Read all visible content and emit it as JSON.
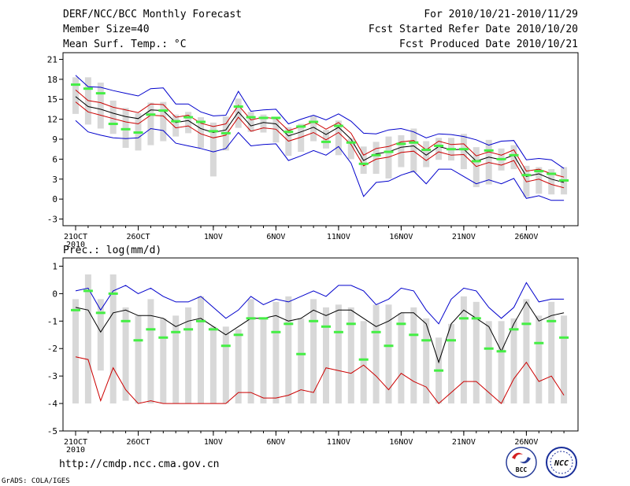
{
  "header": {
    "title": "DERF/NCC/BCC Monthly Forecast",
    "member_size": "Member Size=40",
    "variable": "Mean Surf. Temp.: °C",
    "period": "For 2010/10/21-2010/11/29",
    "start_date": "Fcst Started Refer Date 2010/10/20",
    "produced_date": "Fcst Produced Date 2010/10/21"
  },
  "footer": {
    "url": "http://cmdp.ncc.cma.gov.cn",
    "grads_credit": "GrADS: COLA/IGES",
    "logo_bcc": "BCC",
    "logo_ncc": "NCC"
  },
  "colors": {
    "envelope": "#0000cc",
    "ensemble_mean": "#000000",
    "spread_band": "#cc0000",
    "observed_bar": "#d8d8d8",
    "marker": "#44ee44"
  },
  "chart_data": [
    {
      "type": "line",
      "title": "Mean Surf. Temp.: °C",
      "xlabel": "",
      "ylabel": "",
      "x_ticks": [
        "21OCT",
        "26OCT",
        "1NOV",
        "6NOV",
        "11NOV",
        "16NOV",
        "21NOV",
        "26NOV"
      ],
      "x_tick_days": [
        1,
        6,
        12,
        17,
        22,
        27,
        32,
        37
      ],
      "x_sub_label": "2010",
      "ylim": [
        -4,
        22
      ],
      "y_ticks": [
        -3,
        0,
        3,
        6,
        9,
        12,
        15,
        18,
        21
      ],
      "days": [
        1,
        2,
        3,
        4,
        5,
        6,
        7,
        8,
        9,
        10,
        11,
        12,
        13,
        14,
        15,
        16,
        17,
        18,
        19,
        20,
        21,
        22,
        23,
        24,
        25,
        26,
        27,
        28,
        29,
        30,
        31,
        32,
        33,
        34,
        35,
        36,
        37,
        38,
        39,
        40
      ],
      "series": [
        {
          "name": "max",
          "values": [
            18.6,
            16.9,
            16.8,
            16.3,
            15.9,
            15.5,
            16.6,
            16.7,
            14.3,
            14.3,
            13.1,
            12.5,
            12.6,
            16.2,
            13.2,
            13.4,
            13.5,
            11.3,
            12.0,
            12.6,
            11.9,
            12.8,
            11.7,
            9.9,
            9.8,
            10.4,
            10.6,
            10.1,
            9.2,
            9.8,
            9.7,
            9.4,
            8.9,
            8.1,
            8.7,
            8.8,
            5.9,
            6.1,
            5.9,
            4.6
          ]
        },
        {
          "name": "upper",
          "values": [
            16.4,
            14.8,
            14.5,
            13.8,
            13.4,
            13.0,
            14.3,
            14.2,
            12.3,
            12.6,
            11.4,
            10.9,
            11.3,
            14.1,
            11.9,
            12.3,
            12.1,
            10.3,
            10.9,
            11.6,
            10.5,
            11.5,
            9.9,
            6.6,
            7.6,
            7.9,
            8.6,
            8.8,
            7.4,
            8.7,
            8.2,
            8.3,
            6.5,
            7.1,
            6.6,
            7.4,
            4.2,
            4.5,
            3.8,
            3.3
          ]
        },
        {
          "name": "mean",
          "values": [
            15.4,
            13.9,
            13.5,
            12.9,
            12.4,
            12.1,
            13.4,
            13.3,
            11.5,
            11.8,
            10.6,
            10.0,
            10.4,
            13.1,
            11.0,
            11.5,
            11.3,
            9.5,
            10.1,
            10.8,
            9.7,
            10.8,
            9.0,
            5.8,
            6.8,
            7.1,
            7.8,
            8.0,
            6.6,
            7.9,
            7.4,
            7.5,
            5.7,
            6.3,
            5.9,
            6.6,
            3.4,
            3.8,
            3.0,
            2.5
          ]
        },
        {
          "name": "lower",
          "values": [
            14.6,
            13.1,
            12.6,
            12.1,
            11.6,
            11.3,
            12.6,
            12.5,
            10.7,
            11.0,
            9.8,
            9.2,
            9.6,
            12.3,
            10.2,
            10.7,
            10.5,
            8.7,
            9.3,
            10.0,
            8.9,
            10.0,
            8.2,
            5.0,
            6.0,
            6.3,
            7.0,
            7.2,
            5.8,
            7.1,
            6.6,
            6.7,
            4.9,
            5.5,
            5.1,
            5.8,
            2.6,
            3.0,
            2.2,
            1.7
          ]
        },
        {
          "name": "min",
          "values": [
            11.8,
            10.1,
            9.6,
            9.2,
            9.1,
            9.2,
            10.6,
            10.3,
            8.4,
            8.0,
            7.6,
            7.1,
            7.6,
            10.0,
            8.0,
            8.2,
            8.3,
            5.8,
            6.5,
            7.3,
            6.6,
            7.9,
            5.4,
            0.4,
            2.5,
            2.7,
            3.6,
            4.2,
            2.3,
            4.5,
            4.5,
            3.4,
            2.3,
            2.9,
            2.3,
            3.1,
            0.1,
            0.5,
            -0.2,
            -0.2
          ]
        }
      ],
      "boxes": [
        {
          "day": 1,
          "lo": 12.8,
          "hi": 18.3,
          "marker": 17.2
        },
        {
          "day": 2,
          "lo": 11.2,
          "hi": 18.3,
          "marker": 16.6
        },
        {
          "day": 3,
          "lo": 10.6,
          "hi": 17.5,
          "marker": 15.9
        },
        {
          "day": 4,
          "lo": 9.8,
          "hi": 14.8,
          "marker": 11.3
        },
        {
          "day": 5,
          "lo": 7.7,
          "hi": 13.7,
          "marker": 10.5
        },
        {
          "day": 6,
          "lo": 7.3,
          "hi": 12.9,
          "marker": 10.0
        },
        {
          "day": 7,
          "lo": 8.1,
          "hi": 14.5,
          "marker": 12.7
        },
        {
          "day": 8,
          "lo": 8.7,
          "hi": 14.6,
          "marker": 13.3
        },
        {
          "day": 9,
          "lo": 9.4,
          "hi": 12.7,
          "marker": 11.7
        },
        {
          "day": 10,
          "lo": 9.9,
          "hi": 13.1,
          "marker": 12.3
        },
        {
          "day": 11,
          "lo": 7.7,
          "hi": 12.3,
          "marker": 11.6
        },
        {
          "day": 12,
          "lo": 3.4,
          "hi": 11.5,
          "marker": 10.2
        },
        {
          "day": 13,
          "lo": 7.3,
          "hi": 12.4,
          "marker": 9.9
        },
        {
          "day": 14,
          "lo": 10.7,
          "hi": 15.1,
          "marker": 13.9
        },
        {
          "day": 15,
          "lo": 10.1,
          "hi": 13.1,
          "marker": 12.3
        },
        {
          "day": 16,
          "lo": 10.0,
          "hi": 12.7,
          "marker": 12.2
        },
        {
          "day": 17,
          "lo": 8.5,
          "hi": 12.3,
          "marker": 12.2
        },
        {
          "day": 18,
          "lo": 6.5,
          "hi": 10.8,
          "marker": 10.1
        },
        {
          "day": 19,
          "lo": 7.1,
          "hi": 11.3,
          "marker": 10.9
        },
        {
          "day": 20,
          "lo": 8.7,
          "hi": 12.5,
          "marker": 11.6
        },
        {
          "day": 21,
          "lo": 7.6,
          "hi": 10.4,
          "marker": 8.6
        },
        {
          "day": 22,
          "lo": 6.6,
          "hi": 11.8,
          "marker": 11.0
        },
        {
          "day": 23,
          "lo": 6.0,
          "hi": 9.1,
          "marker": 8.5
        },
        {
          "day": 24,
          "lo": 3.8,
          "hi": 7.9,
          "marker": 5.3
        },
        {
          "day": 25,
          "lo": 3.8,
          "hi": 8.6,
          "marker": 6.6
        },
        {
          "day": 26,
          "lo": 3.1,
          "hi": 9.4,
          "marker": 7.1
        },
        {
          "day": 27,
          "lo": 4.8,
          "hi": 9.6,
          "marker": 8.3
        },
        {
          "day": 28,
          "lo": 4.0,
          "hi": 10.6,
          "marker": 8.5
        },
        {
          "day": 29,
          "lo": 4.8,
          "hi": 8.7,
          "marker": 7.4
        },
        {
          "day": 30,
          "lo": 5.9,
          "hi": 9.2,
          "marker": 8.0
        },
        {
          "day": 31,
          "lo": 5.8,
          "hi": 9.2,
          "marker": 7.5
        },
        {
          "day": 32,
          "lo": 4.5,
          "hi": 9.8,
          "marker": 7.5
        },
        {
          "day": 33,
          "lo": 1.8,
          "hi": 7.8,
          "marker": 5.7
        },
        {
          "day": 34,
          "lo": 2.2,
          "hi": 8.9,
          "marker": 7.3
        },
        {
          "day": 35,
          "lo": 4.3,
          "hi": 7.6,
          "marker": 6.0
        },
        {
          "day": 36,
          "lo": 4.5,
          "hi": 8.1,
          "marker": 6.6
        },
        {
          "day": 37,
          "lo": 0.3,
          "hi": 5.0,
          "marker": 3.6
        },
        {
          "day": 38,
          "lo": 0.8,
          "hi": 4.8,
          "marker": 4.2
        },
        {
          "day": 39,
          "lo": 0.7,
          "hi": 4.5,
          "marker": 3.8
        },
        {
          "day": 40,
          "lo": 0.7,
          "hi": 4.8,
          "marker": 2.8
        }
      ]
    },
    {
      "type": "line",
      "title": "Prec.: log(mm/d)",
      "xlabel": "",
      "ylabel": "",
      "x_ticks": [
        "21OCT",
        "26OCT",
        "1NOV",
        "6NOV",
        "11NOV",
        "16NOV",
        "21NOV",
        "26NOV"
      ],
      "x_tick_days": [
        1,
        6,
        12,
        17,
        22,
        27,
        32,
        37
      ],
      "x_sub_label": "2010",
      "ylim": [
        -5,
        1.3
      ],
      "y_ticks": [
        -5,
        -4,
        -3,
        -2,
        -1,
        0,
        1
      ],
      "days": [
        1,
        2,
        3,
        4,
        5,
        6,
        7,
        8,
        9,
        10,
        11,
        12,
        13,
        14,
        15,
        16,
        17,
        18,
        19,
        20,
        21,
        22,
        23,
        24,
        25,
        26,
        27,
        28,
        29,
        30,
        31,
        32,
        33,
        34,
        35,
        36,
        37,
        38,
        39,
        40
      ],
      "series": [
        {
          "name": "max",
          "values": [
            0.1,
            0.2,
            -0.6,
            0.1,
            0.3,
            0.0,
            0.2,
            -0.1,
            -0.3,
            -0.3,
            -0.1,
            -0.5,
            -0.9,
            -0.6,
            -0.1,
            -0.4,
            -0.2,
            -0.3,
            -0.1,
            0.1,
            -0.1,
            0.3,
            0.3,
            0.1,
            -0.4,
            -0.2,
            0.2,
            0.1,
            -0.6,
            -1.1,
            -0.2,
            0.2,
            0.1,
            -0.5,
            -0.9,
            -0.5,
            0.4,
            -0.3,
            -0.2,
            -0.2
          ]
        },
        {
          "name": "mean",
          "values": [
            -0.5,
            -0.6,
            -1.4,
            -0.7,
            -0.6,
            -0.8,
            -0.8,
            -0.9,
            -1.2,
            -1.0,
            -0.9,
            -1.2,
            -1.5,
            -1.2,
            -0.9,
            -0.9,
            -0.8,
            -1.0,
            -0.9,
            -0.6,
            -0.8,
            -0.6,
            -0.6,
            -0.9,
            -1.2,
            -1.0,
            -0.7,
            -0.7,
            -1.1,
            -2.5,
            -1.1,
            -0.6,
            -0.9,
            -1.2,
            -2.1,
            -1.1,
            -0.3,
            -1.0,
            -0.8,
            -0.7
          ]
        },
        {
          "name": "min",
          "values": [
            -2.3,
            -2.4,
            -3.9,
            -2.7,
            -3.5,
            -4.0,
            -3.9,
            -4.0,
            -4.0,
            -4.0,
            -4.0,
            -4.0,
            -4.0,
            -3.6,
            -3.6,
            -3.8,
            -3.8,
            -3.7,
            -3.5,
            -3.6,
            -2.7,
            -2.8,
            -2.9,
            -2.6,
            -3.0,
            -3.5,
            -2.9,
            -3.2,
            -3.4,
            -4.0,
            -3.6,
            -3.2,
            -3.2,
            -3.6,
            -4.0,
            -3.1,
            -2.5,
            -3.2,
            -3.0,
            -3.7
          ]
        }
      ],
      "boxes": [
        {
          "day": 1,
          "lo": -4.0,
          "hi": -0.2,
          "marker": -0.6
        },
        {
          "day": 2,
          "lo": -4.0,
          "hi": 0.7,
          "marker": 0.1
        },
        {
          "day": 3,
          "lo": -2.8,
          "hi": -0.2,
          "marker": -0.7
        },
        {
          "day": 4,
          "lo": -4.0,
          "hi": 0.7,
          "marker": 0.0
        },
        {
          "day": 5,
          "lo": -3.9,
          "hi": -0.5,
          "marker": -1.0
        },
        {
          "day": 6,
          "lo": -4.0,
          "hi": -0.8,
          "marker": -1.7
        },
        {
          "day": 7,
          "lo": -4.0,
          "hi": -0.2,
          "marker": -1.3
        },
        {
          "day": 8,
          "lo": -4.0,
          "hi": -0.9,
          "marker": -1.6
        },
        {
          "day": 9,
          "lo": -4.0,
          "hi": -0.8,
          "marker": -1.4
        },
        {
          "day": 10,
          "lo": -4.0,
          "hi": -0.5,
          "marker": -1.3
        },
        {
          "day": 11,
          "lo": -4.0,
          "hi": -0.1,
          "marker": -1.0
        },
        {
          "day": 12,
          "lo": -4.0,
          "hi": -1.2,
          "marker": -1.3
        },
        {
          "day": 13,
          "lo": -4.0,
          "hi": -1.2,
          "marker": -1.9
        },
        {
          "day": 14,
          "lo": -4.0,
          "hi": -1.3,
          "marker": -1.5
        },
        {
          "day": 15,
          "lo": -4.0,
          "hi": -0.2,
          "marker": -0.9
        },
        {
          "day": 16,
          "lo": -4.0,
          "hi": -0.9,
          "marker": -0.9
        },
        {
          "day": 17,
          "lo": -4.0,
          "hi": -0.3,
          "marker": -1.4
        },
        {
          "day": 18,
          "lo": -4.0,
          "hi": -0.1,
          "marker": -1.1
        },
        {
          "day": 19,
          "lo": -4.0,
          "hi": -0.9,
          "marker": -2.2
        },
        {
          "day": 20,
          "lo": -4.0,
          "hi": -0.2,
          "marker": -1.0
        },
        {
          "day": 21,
          "lo": -4.0,
          "hi": -0.5,
          "marker": -1.2
        },
        {
          "day": 22,
          "lo": -4.0,
          "hi": -0.4,
          "marker": -1.4
        },
        {
          "day": 23,
          "lo": -4.0,
          "hi": -0.5,
          "marker": -1.1
        },
        {
          "day": 24,
          "lo": -4.0,
          "hi": -1.0,
          "marker": -2.4
        },
        {
          "day": 25,
          "lo": -4.0,
          "hi": -0.4,
          "marker": -1.4
        },
        {
          "day": 26,
          "lo": -4.0,
          "hi": -0.4,
          "marker": -1.9
        },
        {
          "day": 27,
          "lo": -4.0,
          "hi": -0.7,
          "marker": -1.1
        },
        {
          "day": 28,
          "lo": -4.0,
          "hi": -0.5,
          "marker": -1.5
        },
        {
          "day": 29,
          "lo": -4.0,
          "hi": -0.9,
          "marker": -1.7
        },
        {
          "day": 30,
          "lo": -4.0,
          "hi": -1.6,
          "marker": -2.8
        },
        {
          "day": 31,
          "lo": -4.0,
          "hi": -1.1,
          "marker": -1.7
        },
        {
          "day": 32,
          "lo": -4.0,
          "hi": -0.1,
          "marker": -0.9
        },
        {
          "day": 33,
          "lo": -4.0,
          "hi": -0.3,
          "marker": -0.9
        },
        {
          "day": 34,
          "lo": -4.0,
          "hi": -1.0,
          "marker": -2.0
        },
        {
          "day": 35,
          "lo": -4.0,
          "hi": -1.0,
          "marker": -2.1
        },
        {
          "day": 36,
          "lo": -4.0,
          "hi": -0.9,
          "marker": -1.3
        },
        {
          "day": 37,
          "lo": -4.0,
          "hi": -0.2,
          "marker": -1.1
        },
        {
          "day": 38,
          "lo": -4.0,
          "hi": -0.8,
          "marker": -1.8
        },
        {
          "day": 39,
          "lo": -4.0,
          "hi": -0.3,
          "marker": -1.0
        },
        {
          "day": 40,
          "lo": -4.0,
          "hi": -0.8,
          "marker": -1.6
        }
      ]
    }
  ]
}
